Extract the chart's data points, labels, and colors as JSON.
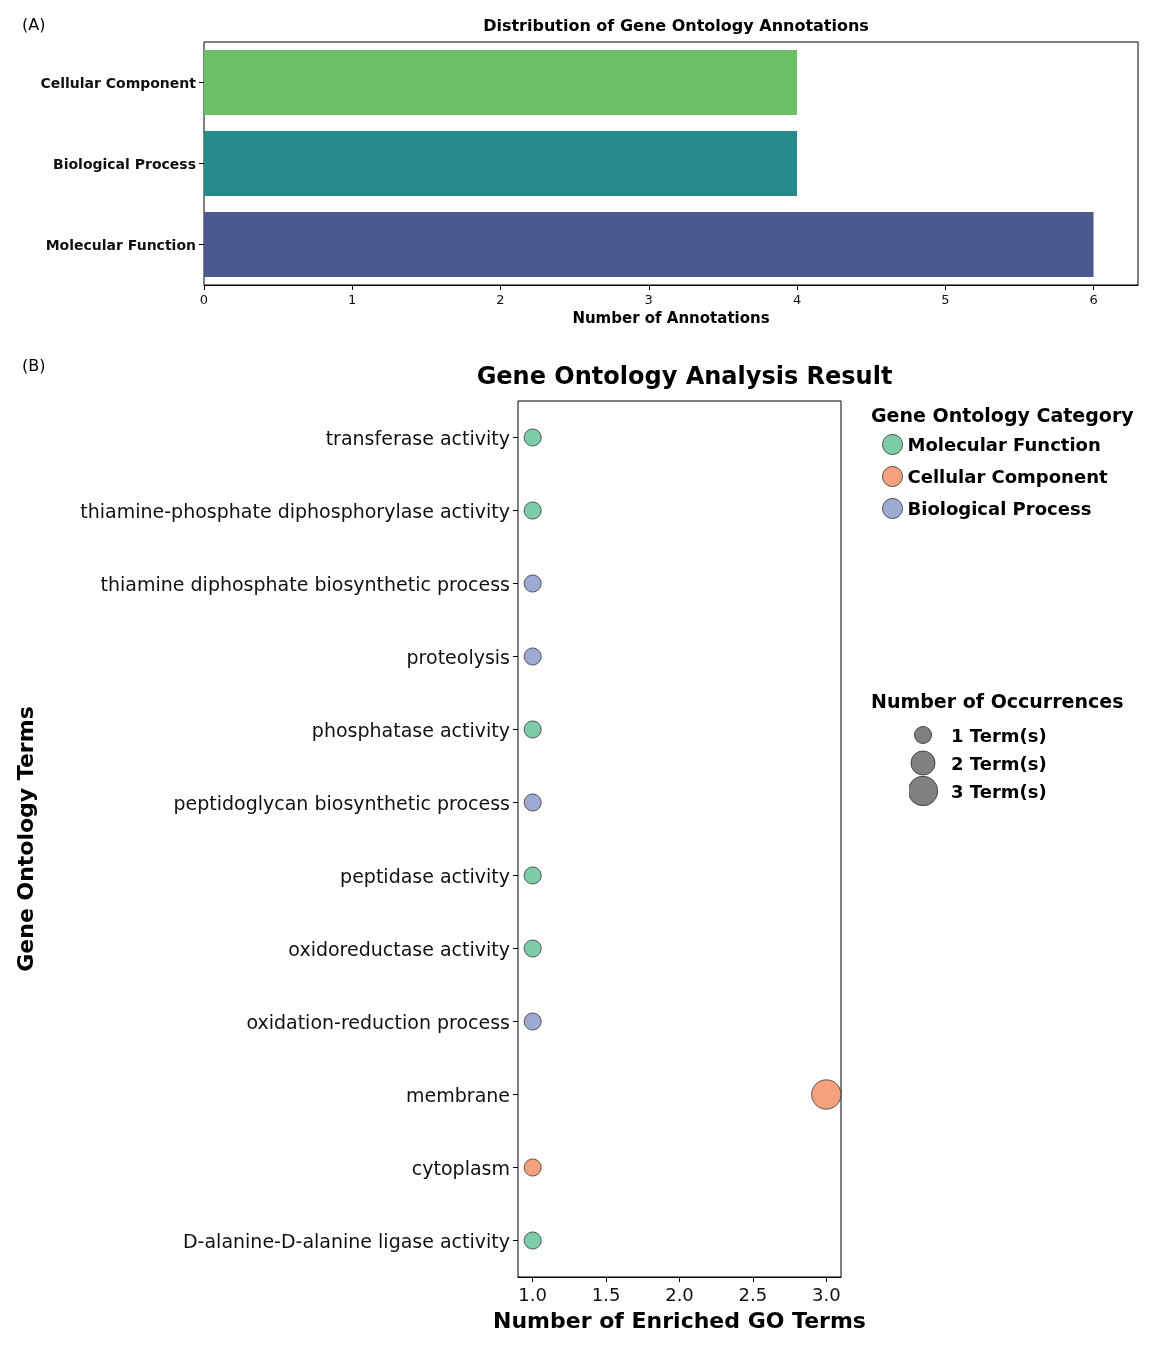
{
  "chart_data": [
    {
      "type": "bar",
      "orientation": "horizontal",
      "title": "Distribution of Gene Ontology Annotations",
      "xlabel": "Number of Annotations",
      "annotations": [
        "(A)"
      ],
      "categories": [
        "Cellular Component",
        "Biological Process",
        "Molecular Function"
      ],
      "values": [
        4,
        4,
        6
      ],
      "colors": [
        "#6dbf67",
        "#278a8a",
        "#4a5a8f"
      ],
      "xlim": [
        0,
        6.3
      ],
      "xticks": [
        0,
        1,
        2,
        3,
        4,
        5,
        6
      ],
      "grid": false
    },
    {
      "type": "bubble",
      "orientation": "horizontal",
      "title": "Gene Ontology Analysis Result",
      "xlabel": "Number of Enriched GO Terms",
      "ylabel": "Gene Ontology Terms",
      "legend_title": "Gene Ontology Category",
      "annotations": [
        "(B)",
        "Number of Occurrences"
      ],
      "categories": [
        "transferase activity",
        "thiamine-phosphate diphosphorylase activity",
        "thiamine diphosphate biosynthetic process",
        "proteolysis",
        "phosphatase activity",
        "peptidoglycan biosynthetic process",
        "peptidase activity",
        "oxidoreductase activity",
        "oxidation-reduction process",
        "membrane",
        "cytoplasm",
        "D-alanine-D-alanine ligase activity"
      ],
      "series": [
        {
          "name": "Molecular Function",
          "color": "#5cbf94",
          "values": [
            1,
            1,
            null,
            null,
            1,
            null,
            1,
            1,
            null,
            null,
            null,
            1
          ],
          "sizes": [
            1,
            1,
            null,
            null,
            1,
            null,
            1,
            1,
            null,
            null,
            null,
            1
          ]
        },
        {
          "name": "Cellular Component",
          "color": "#f28a5c",
          "values": [
            null,
            null,
            null,
            null,
            null,
            null,
            null,
            null,
            null,
            3,
            1,
            null
          ],
          "sizes": [
            null,
            null,
            null,
            null,
            null,
            null,
            null,
            null,
            null,
            3,
            1,
            null
          ]
        },
        {
          "name": "Biological Process",
          "color": "#8496c8",
          "values": [
            null,
            null,
            1,
            1,
            null,
            1,
            null,
            null,
            1,
            null,
            null,
            null
          ],
          "sizes": [
            null,
            null,
            1,
            1,
            null,
            1,
            null,
            null,
            1,
            null,
            null,
            null
          ]
        }
      ],
      "size_legend": [
        {
          "value": 1,
          "label": "1 Term(s)"
        },
        {
          "value": 2,
          "label": "2 Term(s)"
        },
        {
          "value": 3,
          "label": "3 Term(s)"
        }
      ],
      "xlim": [
        0.9,
        3.1
      ],
      "xticks": [
        {
          "value": 1,
          "label": "1.0"
        },
        {
          "value": 1.5,
          "label": "1.5"
        },
        {
          "value": 2,
          "label": "2.0"
        },
        {
          "value": 2.5,
          "label": "2.5"
        },
        {
          "value": 3,
          "label": "3.0"
        }
      ],
      "grid": false,
      "legend": "top right",
      "marker": "circle"
    }
  ]
}
